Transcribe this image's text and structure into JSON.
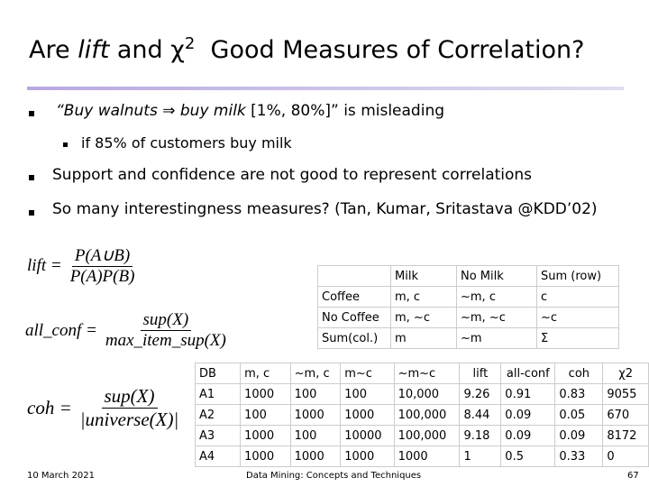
{
  "title": {
    "pre": "Are",
    "italic": "lift",
    "mid": "and",
    "chi": "χ",
    "sup": "2",
    "post": "Good Measures of Correlation?"
  },
  "bullets": [
    {
      "italic": "“Buy walnuts ⇒ buy milk",
      "text": "[1%, 80%]” is misleading"
    },
    {
      "text": "if 85% of customers buy milk"
    },
    {
      "text": "Support and confidence are not good to represent correlations"
    },
    {
      "text": "So many interestingness measures? (Tan, Kumar, Sritastava @KDD’02)"
    }
  ],
  "formulas": [
    {
      "label": "lift =",
      "numerator": "P(A∪B)",
      "denominator": "P(A)P(B)"
    },
    {
      "label": "all_conf =",
      "numerator": "sup(X)",
      "denominator": "max_item_sup(X)"
    },
    {
      "label": "coh =",
      "numerator": "sup(X)",
      "denominator": "|universe(X)|"
    }
  ],
  "contingency_table": {
    "header": [
      "Milk",
      "No Milk",
      "Sum (row)"
    ],
    "rows": [
      [
        "Coffee",
        "m, c",
        "~m, c",
        "c"
      ],
      [
        "No Coffee",
        "m, ~c",
        "~m, ~c",
        "~c"
      ],
      [
        "Sum(col.)",
        "m",
        "~m",
        "Σ"
      ]
    ]
  },
  "measures_table": {
    "header": [
      "DB",
      "m, c",
      "~m, c",
      "m~c",
      "~m~c",
      "lift",
      "all-conf",
      "coh",
      "χ2"
    ],
    "rows": [
      [
        "A1",
        1000,
        100,
        100,
        "10,000",
        9.26,
        0.91,
        0.83,
        9055
      ],
      [
        "A2",
        100,
        1000,
        1000,
        "100,000",
        8.44,
        0.09,
        0.05,
        670
      ],
      [
        "A3",
        1000,
        100,
        10000,
        "100,000",
        9.18,
        0.09,
        0.09,
        8172
      ],
      [
        "A4",
        1000,
        1000,
        1000,
        1000,
        1,
        0.5,
        0.33,
        0
      ]
    ]
  },
  "footer": {
    "date": "10 March 2021",
    "center": "Data Mining: Concepts and Techniques",
    "page": "67"
  }
}
